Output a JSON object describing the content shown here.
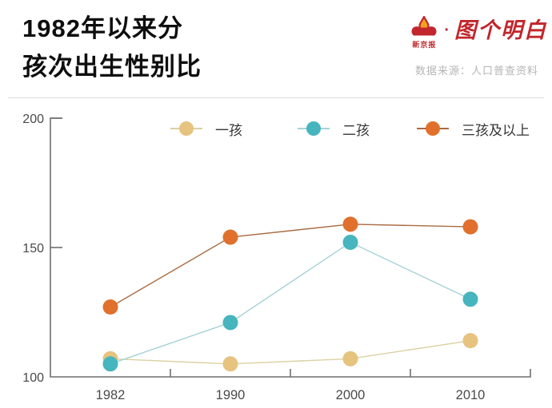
{
  "header": {
    "title_line1": "1982年以来分",
    "title_line2": "孩次出生性别比",
    "brand": {
      "name": "新京报",
      "dot": "·",
      "tagline": "图个明白",
      "color": "#c1272d"
    },
    "source": "数据来源：人口普查资料"
  },
  "chart_data": {
    "type": "line",
    "title": "1982年以来分孩次出生性别比",
    "x": [
      "1982",
      "1990",
      "2000",
      "2010"
    ],
    "series": [
      {
        "name": "一孩",
        "values": [
          107,
          105,
          107,
          114
        ],
        "dot_color": "#e6c37e",
        "line_color": "#dbd1a2"
      },
      {
        "name": "二孩",
        "values": [
          105,
          121,
          152,
          130
        ],
        "dot_color": "#46b5bd",
        "line_color": "#a5d2d6"
      },
      {
        "name": "三孩及以上",
        "values": [
          127,
          154,
          159,
          158
        ],
        "dot_color": "#e0702b",
        "line_color": "#a86b42"
      }
    ],
    "xlabel": "",
    "ylabel": "",
    "ylim": [
      100,
      200
    ],
    "yticks": [
      100,
      150,
      200
    ],
    "grid": false,
    "legend_position": "top"
  },
  "style": {
    "axis_color": "#6e6e6e",
    "tick_label_color": "#4a4a4a",
    "legend_label_color": "#333333"
  }
}
